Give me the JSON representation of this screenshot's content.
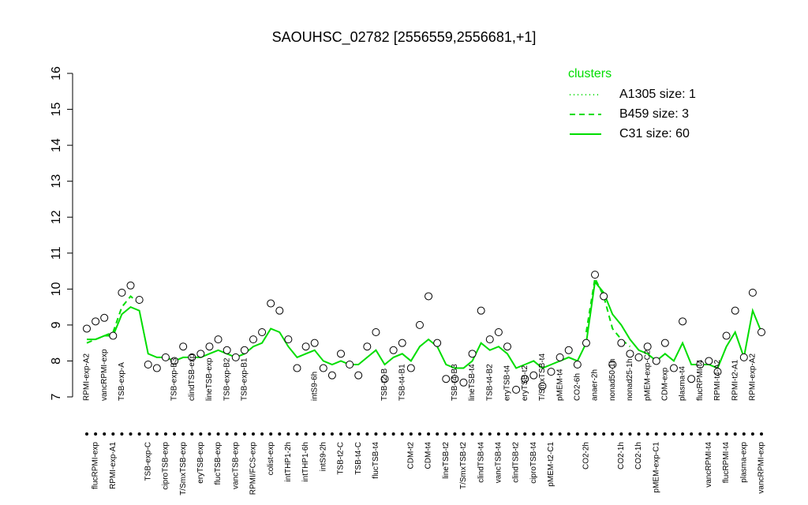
{
  "chart_data": {
    "type": "line",
    "title": "SAOUHSC_02782 [2556559,2556681,+1]",
    "legend_title": "clusters",
    "legend": "upper right",
    "ylim": [
      7,
      16
    ],
    "yticks": [
      7,
      8,
      9,
      10,
      11,
      12,
      13,
      14,
      15,
      16
    ],
    "marker_edge": "#000000",
    "marker_face": "#ffffff",
    "categories": [
      "RPMI-exp-A2",
      "flucRPMI-exp",
      "vancRPMI-exp",
      "RPMI-exp-A1",
      "TSB-exp-A",
      null,
      null,
      "TSB-exp-C",
      null,
      "ciproTSB-exp",
      "TSB-exp-B3",
      "T/SmxTSB-exp",
      "clindTSB-exp",
      "eryTSB-exp",
      "lineTSB-exp",
      "flucTSB-exp",
      "TSB-exp-B2",
      "vancTSB-exp",
      "TSB-exp-B1",
      "RPMI/FCS-exp",
      null,
      "colist-exp",
      null,
      "intTHP1-2h",
      null,
      "intTHP1-6h",
      "intS9-6h",
      "intS9-2h",
      null,
      "TSB-t2-C",
      null,
      "TSB-t4-C",
      null,
      "flucTSB-t4",
      "TSB-t2-B",
      null,
      "TSB-t4-B1",
      "CDM-t2",
      null,
      "CDM-t4",
      null,
      "lineTSB-t2",
      "TSB-t4-B3",
      "T/SmxTSB-t2",
      "lineTSB-t4",
      "clindTSB-t4",
      "TSB-t4-B2",
      "vancTSB-t4",
      "eryTSB-t4",
      "clindTSB-t2",
      "eryTSB-t2",
      "ciproTSB-t4",
      "T/SmxTSB-t4",
      "pMEM-t2-C1",
      "pMEM-t4",
      null,
      "CO2-6h",
      "CO2-2h",
      "anaer-2h",
      null,
      "nonad50-1h",
      "CO2-1h",
      "nonad25-1h",
      "CO2-1h",
      "pMEM-exp-C2",
      "pMEM-exp-C1",
      "CDM-exp",
      null,
      "plasma-t4",
      null,
      "flucRPMI-t4",
      "vancRPMI-t4",
      "RPMI-t4-A2",
      "flucRPMI-t4",
      "RPMI-t2-A1",
      "plasma-exp",
      "RPMI-exp-A2",
      "vancRPMI-exp"
    ],
    "values": [
      8.9,
      9.1,
      9.2,
      8.7,
      9.9,
      10.1,
      9.7,
      7.9,
      7.8,
      8.1,
      8.0,
      8.4,
      8.1,
      8.2,
      8.4,
      8.6,
      8.3,
      8.1,
      8.3,
      8.6,
      8.8,
      9.6,
      9.4,
      8.6,
      7.8,
      8.4,
      8.5,
      7.8,
      7.6,
      8.2,
      7.9,
      7.6,
      8.4,
      8.8,
      7.5,
      8.3,
      8.5,
      7.8,
      9.0,
      9.8,
      8.5,
      7.5,
      7.5,
      7.4,
      8.2,
      9.4,
      8.6,
      8.8,
      8.4,
      7.2,
      7.5,
      7.6,
      7.3,
      7.7,
      8.1,
      8.3,
      7.9,
      8.5,
      10.4,
      9.8,
      7.9,
      8.5,
      8.2,
      8.1,
      8.4,
      8.0,
      8.5,
      7.8,
      9.1,
      7.5,
      7.9,
      8.0,
      7.7,
      8.7,
      9.4,
      8.1,
      9.9,
      8.8
    ],
    "series": [
      {
        "name": "A1305 size: 1",
        "color": "#00dd00",
        "linestyle": "dotted",
        "values": [
          null,
          null,
          null,
          null,
          null,
          null,
          null,
          null,
          null,
          null,
          null,
          null,
          null,
          null,
          null,
          null,
          null,
          null,
          null,
          null,
          null,
          null,
          null,
          null,
          null,
          null,
          null,
          null,
          null,
          null,
          null,
          null,
          null,
          null,
          null,
          null,
          null,
          null,
          null,
          null,
          null,
          null,
          null,
          null,
          null,
          null,
          null,
          null,
          null,
          null,
          null,
          null,
          null,
          null,
          null,
          null,
          null,
          null,
          null,
          null,
          null,
          null,
          null,
          null,
          null,
          null,
          null,
          null,
          null,
          null,
          null,
          null,
          null,
          null,
          null,
          null,
          null,
          null
        ]
      },
      {
        "name": "B459 size: 3",
        "color": "#00dd00",
        "linestyle": "dashed",
        "values": [
          8.5,
          8.6,
          8.7,
          8.8,
          9.5,
          9.8,
          9.6,
          null,
          null,
          null,
          null,
          null,
          null,
          null,
          null,
          null,
          null,
          null,
          null,
          null,
          null,
          null,
          null,
          null,
          null,
          null,
          null,
          null,
          null,
          null,
          null,
          null,
          null,
          null,
          null,
          null,
          null,
          null,
          null,
          null,
          null,
          null,
          null,
          null,
          null,
          null,
          null,
          null,
          null,
          null,
          null,
          null,
          null,
          null,
          null,
          null,
          null,
          8.8,
          10.3,
          9.8,
          8.9,
          8.6,
          8.4,
          null,
          null,
          null,
          null,
          null,
          null,
          null,
          null,
          null,
          null,
          null,
          null,
          null,
          null,
          null
        ]
      },
      {
        "name": "C31 size: 60",
        "color": "#00dd00",
        "linestyle": "solid",
        "values": [
          8.6,
          8.6,
          8.7,
          8.7,
          9.3,
          9.5,
          9.4,
          8.2,
          8.1,
          8.1,
          8.0,
          8.1,
          8.1,
          8.1,
          8.2,
          8.3,
          8.2,
          8.1,
          8.2,
          8.4,
          8.5,
          8.9,
          8.8,
          8.4,
          8.1,
          8.2,
          8.3,
          8.0,
          7.9,
          8.0,
          7.9,
          7.9,
          8.1,
          8.3,
          7.9,
          8.1,
          8.2,
          8.0,
          8.4,
          8.6,
          8.4,
          7.9,
          7.8,
          7.8,
          8.0,
          8.5,
          8.3,
          8.4,
          8.2,
          7.8,
          7.9,
          8.0,
          7.8,
          7.9,
          8.0,
          8.1,
          8.0,
          8.5,
          10.2,
          9.9,
          9.3,
          9.0,
          8.6,
          8.3,
          8.2,
          8.0,
          8.2,
          8.0,
          8.5,
          7.9,
          7.9,
          7.9,
          7.8,
          8.4,
          8.8,
          8.1,
          9.4,
          8.8
        ]
      }
    ]
  }
}
